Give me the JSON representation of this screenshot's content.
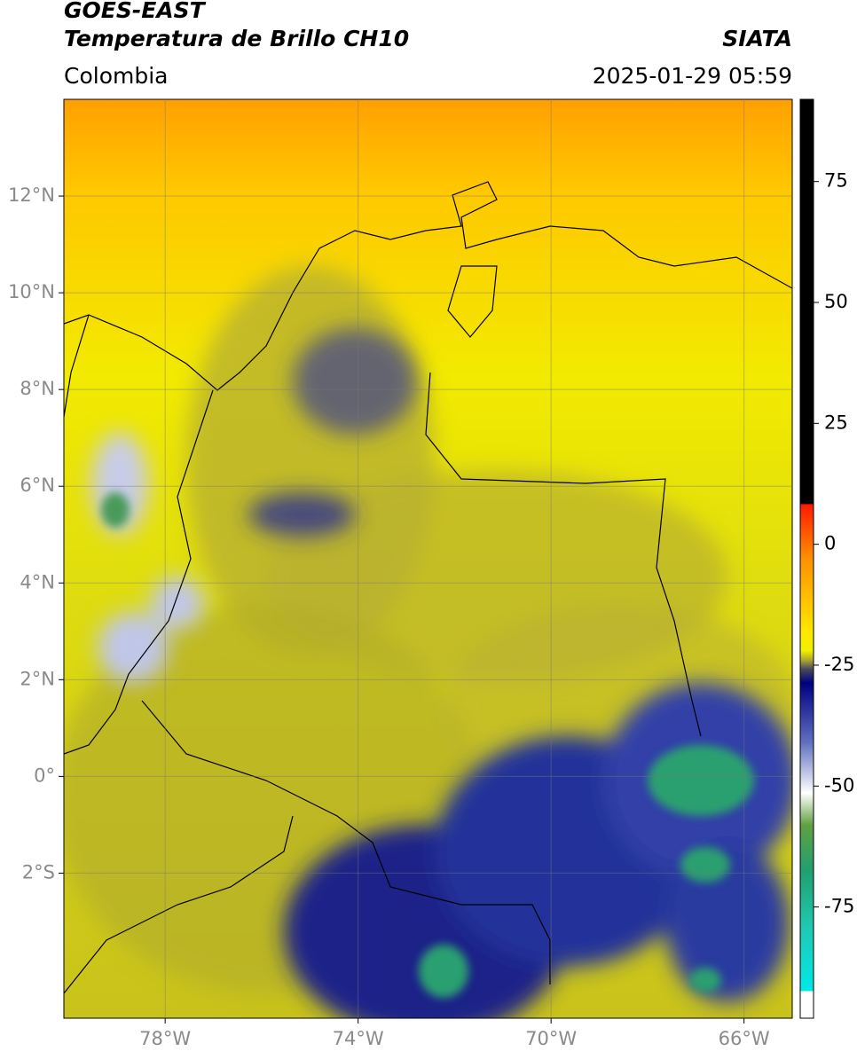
{
  "header": {
    "satellite": "GOES-EAST",
    "product": "Temperatura de Brillo CH10",
    "source": "SIATA",
    "region": "Colombia",
    "datetime": "2025-01-29 05:59"
  },
  "map": {
    "xlim": [
      -80.1,
      -65
    ],
    "ylim": [
      -5,
      14
    ],
    "xticks": [
      {
        "value": -78,
        "label": "78°W"
      },
      {
        "value": -74,
        "label": "74°W"
      },
      {
        "value": -70,
        "label": "70°W"
      },
      {
        "value": -66,
        "label": "66°W"
      }
    ],
    "yticks": [
      {
        "value": 12,
        "label": "12°N"
      },
      {
        "value": 10,
        "label": "10°N"
      },
      {
        "value": 8,
        "label": "8°N"
      },
      {
        "value": 6,
        "label": "6°N"
      },
      {
        "value": 4,
        "label": "4°N"
      },
      {
        "value": 2,
        "label": "2°N"
      },
      {
        "value": 0,
        "label": "0°"
      },
      {
        "value": -2,
        "label": "2°S"
      }
    ]
  },
  "colorbar": {
    "lim": [
      -98,
      92
    ],
    "ticks": [
      75,
      50,
      25,
      0,
      -25,
      -50,
      -75
    ]
  }
}
